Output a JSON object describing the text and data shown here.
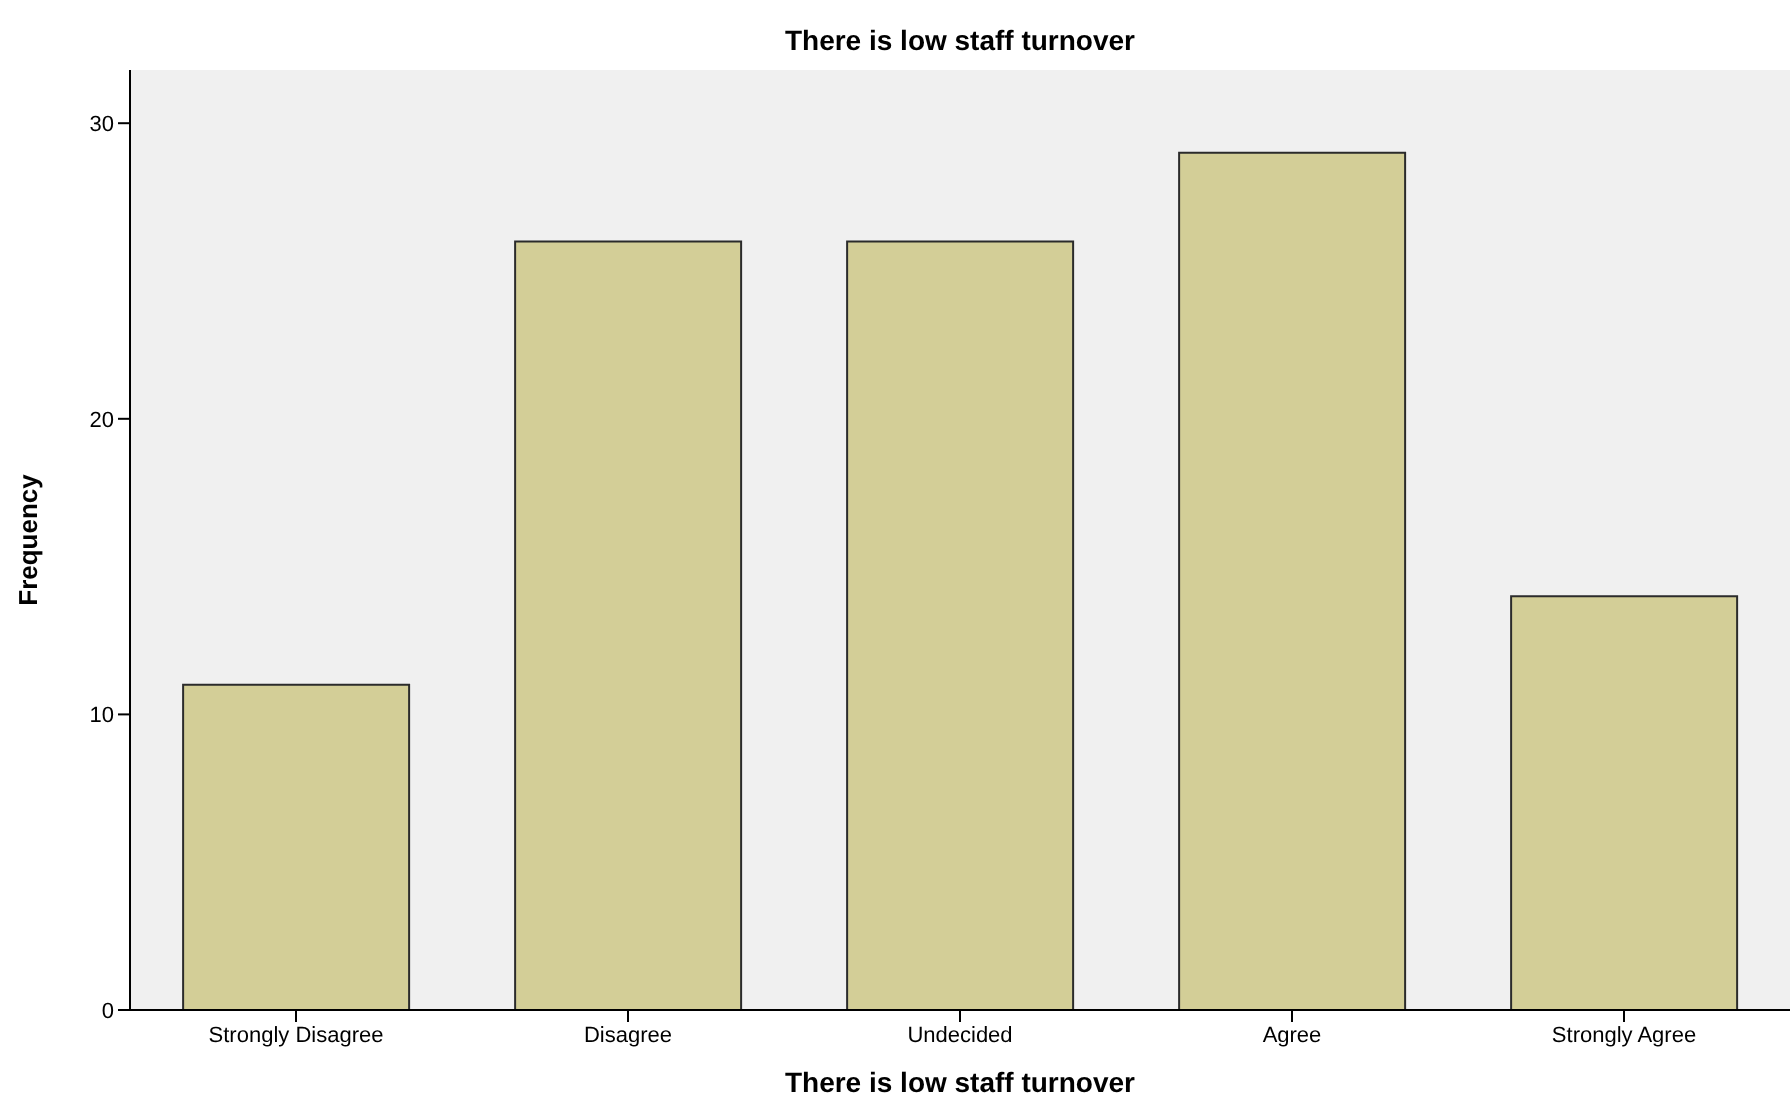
{
  "chart_data": {
    "type": "bar",
    "title": "There is low staff turnover",
    "xlabel": "There is low staff turnover",
    "ylabel": "Frequency",
    "categories": [
      "Strongly Disagree",
      "Disagree",
      "Undecided",
      "Agree",
      "Strongly Agree"
    ],
    "values": [
      11,
      26,
      26,
      29,
      14
    ],
    "color": "#d3ce97",
    "ylim": [
      0,
      31.8
    ],
    "yticks": [
      0,
      10,
      20,
      30
    ]
  }
}
